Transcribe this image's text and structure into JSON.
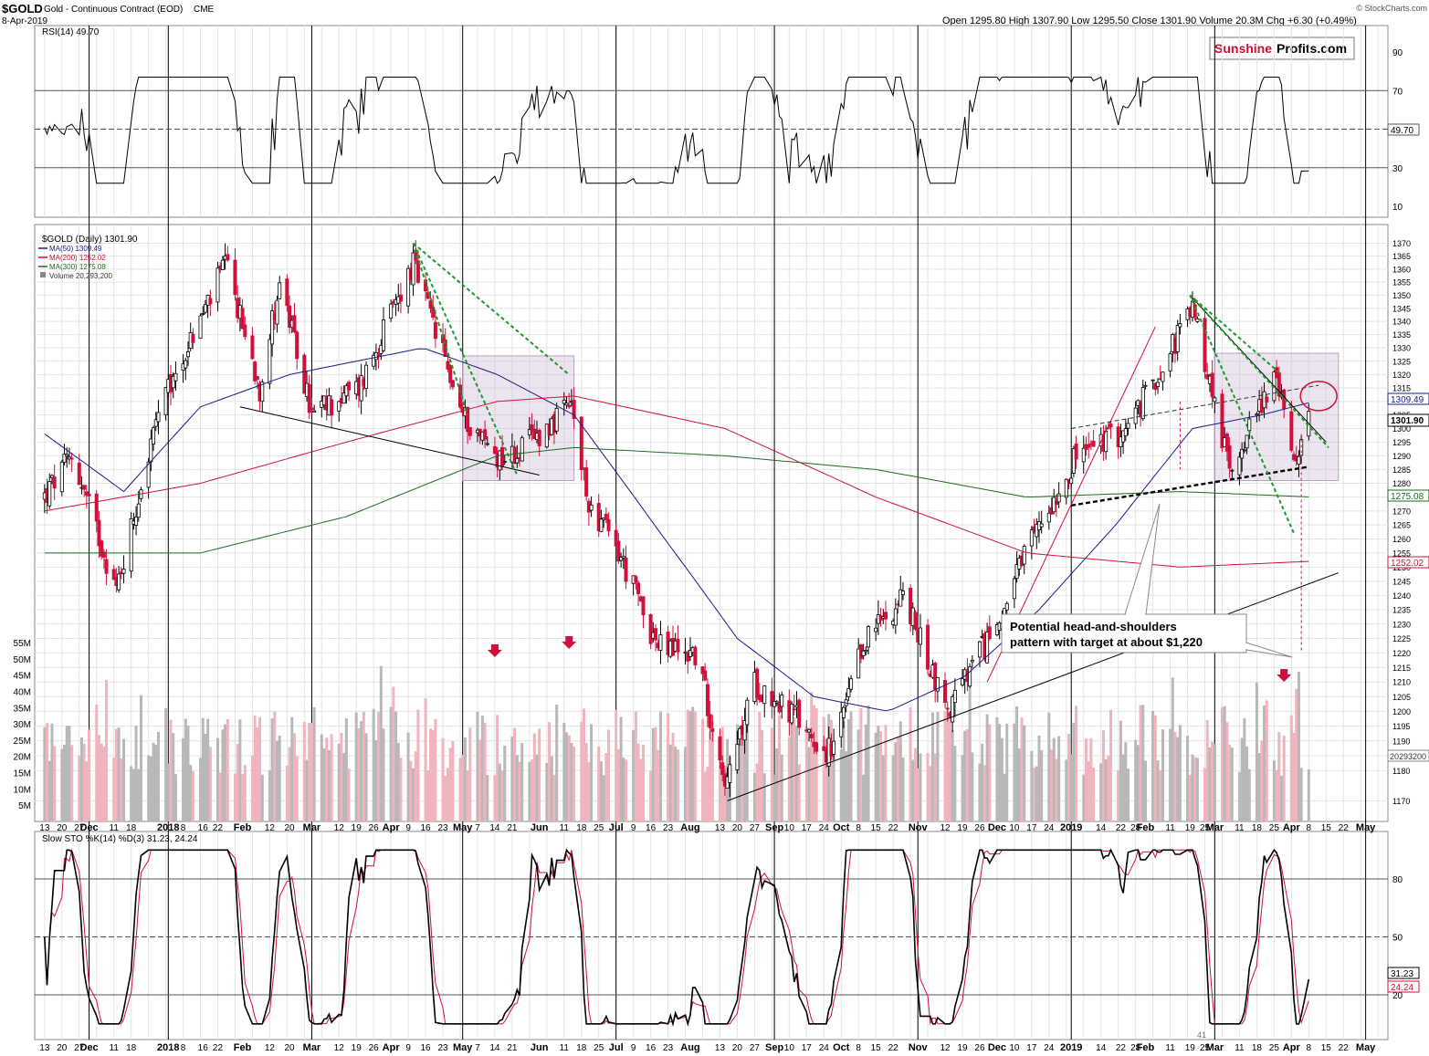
{
  "header": {
    "symbol": "$GOLD",
    "name": "Gold - Continuous Contract (EOD)",
    "exchange": "CME",
    "date": "8-Apr-2019",
    "ohlc": "Open 1295.80  High 1307.90  Low 1295.50  Close 1301.90  Volume 20.3M  Chg +6.30 (+0.49%)",
    "watermark": "© StockCharts.com",
    "logo_sunshine": "Sunshine",
    "logo_profits": "Profits.com"
  },
  "annotation": {
    "line1": "Potential head-and-shoulders",
    "line2": "pattern with target at about $1,220"
  },
  "tags": {
    "ma50": "1309.49",
    "close": "1301.90",
    "ma300": "1275.08",
    "ma200": "1252.02",
    "volume": "20293200",
    "rsi": "49.70",
    "sto_k": "31.23",
    "sto_d": "24.24",
    "bottom_extra": "41"
  },
  "colors": {
    "up": "#a0a0a0",
    "down": "#d0103a",
    "ma50": "#1a1a8c",
    "ma200": "#d0103a",
    "ma300": "#1e6a1e",
    "trend_green": "#1a9a2a",
    "box": "#c8b4d2"
  },
  "chart_data": [
    {
      "type": "line",
      "title": "RSI(14) 49.70",
      "ylabel": "RSI",
      "ylim": [
        10,
        90
      ],
      "y_ticks": [
        "10",
        "30",
        "50",
        "70",
        "90"
      ],
      "reference_lines": [
        30,
        50,
        70
      ],
      "last_value": 49.7,
      "grid": true
    },
    {
      "type": "candlestick",
      "title": "$GOLD (Daily) 1301.90",
      "ylim": [
        1168,
        1373
      ],
      "y_ticks": [
        "1170",
        "1180",
        "1185",
        "1190",
        "1195",
        "1200",
        "1205",
        "1210",
        "1215",
        "1220",
        "1225",
        "1230",
        "1235",
        "1240",
        "1245",
        "1250",
        "1255",
        "1260",
        "1265",
        "1270",
        "1275",
        "1280",
        "1285",
        "1290",
        "1295",
        "1300",
        "1305",
        "1310",
        "1315",
        "1320",
        "1325",
        "1330",
        "1335",
        "1340",
        "1345",
        "1350",
        "1355",
        "1360",
        "1365",
        "1370"
      ],
      "volume_ticks": [
        "5M",
        "10M",
        "15M",
        "20M",
        "25M",
        "30M",
        "35M",
        "40M",
        "45M",
        "50M",
        "55M"
      ],
      "x_ticks": [
        "13",
        "20",
        "27",
        "Dec",
        "11",
        "18",
        "2018",
        "8",
        "16",
        "22",
        "Feb",
        "12",
        "20",
        "Mar",
        "12",
        "19",
        "26",
        "Apr",
        "9",
        "16",
        "23",
        "May",
        "7",
        "14",
        "21",
        "Jun",
        "11",
        "18",
        "25",
        "Jul",
        "9",
        "16",
        "23",
        "Aug",
        "13",
        "20",
        "27",
        "Sep",
        "10",
        "17",
        "24",
        "Oct",
        "8",
        "15",
        "22",
        "Nov",
        "12",
        "19",
        "26",
        "Dec",
        "10",
        "17",
        "24",
        "2019",
        "14",
        "22",
        "28",
        "Feb",
        "11",
        "19",
        "25",
        "Mar",
        "11",
        "18",
        "25",
        "Apr",
        "8",
        "15",
        "22",
        "May"
      ],
      "series": [
        {
          "name": "MA(50) 1309.49",
          "last": 1309.49
        },
        {
          "name": "MA(200) 1252.02",
          "last": 1252.02
        },
        {
          "name": "MA(300) 1275.08",
          "last": 1275.08
        },
        {
          "name": "Volume 20,293,200",
          "last": 20293200
        }
      ],
      "keypoints": {
        "close_path": [
          [
            "2017-11-13",
            1275
          ],
          [
            "2017-11-24",
            1290
          ],
          [
            "2017-12-12",
            1242
          ],
          [
            "2017-12-29",
            1305
          ],
          [
            "2018-01-25",
            1362
          ],
          [
            "2018-02-08",
            1315
          ],
          [
            "2018-02-16",
            1355
          ],
          [
            "2018-03-01",
            1305
          ],
          [
            "2018-03-20",
            1315
          ],
          [
            "2018-04-11",
            1362
          ],
          [
            "2018-05-01",
            1305
          ],
          [
            "2018-05-15",
            1290
          ],
          [
            "2018-05-21",
            1290
          ],
          [
            "2018-06-14",
            1308
          ],
          [
            "2018-06-20",
            1275
          ],
          [
            "2018-07-03",
            1255
          ],
          [
            "2018-07-19",
            1222
          ],
          [
            "2018-08-03",
            1220
          ],
          [
            "2018-08-16",
            1175
          ],
          [
            "2018-08-27",
            1210
          ],
          [
            "2018-09-10",
            1200
          ],
          [
            "2018-09-27",
            1185
          ],
          [
            "2018-10-11",
            1225
          ],
          [
            "2018-10-26",
            1240
          ],
          [
            "2018-11-13",
            1200
          ],
          [
            "2018-12-03",
            1230
          ],
          [
            "2018-12-20",
            1265
          ],
          [
            "2019-01-04",
            1290
          ],
          [
            "2019-01-25",
            1300
          ],
          [
            "2019-02-20",
            1345
          ],
          [
            "2019-03-07",
            1285
          ],
          [
            "2019-03-25",
            1320
          ],
          [
            "2019-04-02",
            1290
          ],
          [
            "2019-04-08",
            1301.9
          ]
        ],
        "ma50_path": [
          [
            "2017-11-13",
            1298
          ],
          [
            "2017-12-15",
            1277
          ],
          [
            "2018-01-15",
            1308
          ],
          [
            "2018-02-20",
            1320
          ],
          [
            "2018-04-15",
            1330
          ],
          [
            "2018-05-15",
            1320
          ],
          [
            "2018-06-15",
            1305
          ],
          [
            "2018-07-20",
            1262
          ],
          [
            "2018-08-20",
            1225
          ],
          [
            "2018-09-20",
            1205
          ],
          [
            "2018-10-20",
            1200
          ],
          [
            "2018-11-20",
            1212
          ],
          [
            "2018-12-20",
            1235
          ],
          [
            "2019-01-20",
            1265
          ],
          [
            "2019-02-20",
            1300
          ],
          [
            "2019-03-20",
            1305
          ],
          [
            "2019-04-08",
            1309.49
          ]
        ],
        "ma200_path": [
          [
            "2017-11-13",
            1270
          ],
          [
            "2018-01-15",
            1280
          ],
          [
            "2018-03-15",
            1295
          ],
          [
            "2018-05-15",
            1310
          ],
          [
            "2018-06-15",
            1312
          ],
          [
            "2018-08-15",
            1300
          ],
          [
            "2018-10-15",
            1275
          ],
          [
            "2018-12-15",
            1255
          ],
          [
            "2019-02-15",
            1250
          ],
          [
            "2019-04-08",
            1252.02
          ]
        ],
        "ma300_path": [
          [
            "2017-11-13",
            1255
          ],
          [
            "2018-01-15",
            1255
          ],
          [
            "2018-03-15",
            1268
          ],
          [
            "2018-05-15",
            1290
          ],
          [
            "2018-06-15",
            1293
          ],
          [
            "2018-08-15",
            1290
          ],
          [
            "2018-10-15",
            1285
          ],
          [
            "2018-12-15",
            1275
          ],
          [
            "2019-02-15",
            1277
          ],
          [
            "2019-04-08",
            1275.08
          ]
        ],
        "head_and_shoulders_target": 1220
      }
    },
    {
      "type": "line",
      "title": "Slow STO %K(14) %D(3) 31.23, 24.24",
      "ylim": [
        0,
        100
      ],
      "y_ticks": [
        "20",
        "50",
        "80"
      ],
      "reference_lines": [
        20,
        50,
        80
      ],
      "series": [
        {
          "name": "%K(14)",
          "last": 31.23
        },
        {
          "name": "%D(3)",
          "last": 24.24
        }
      ],
      "grid": true
    }
  ]
}
